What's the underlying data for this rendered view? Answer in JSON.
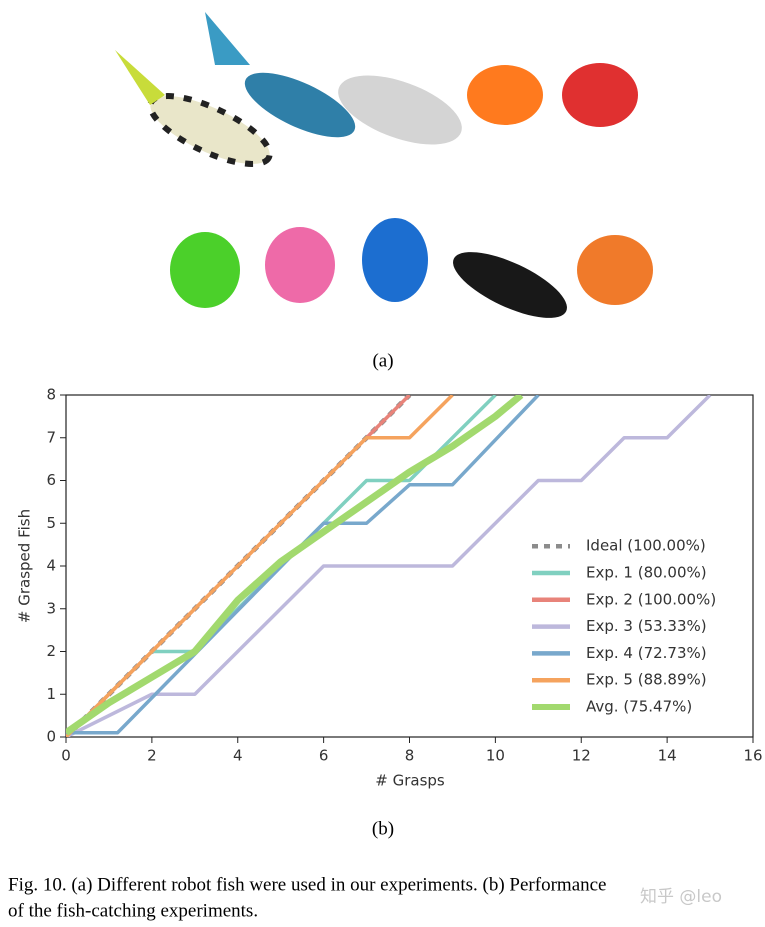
{
  "figure": {
    "panel_a_label": "(a)",
    "panel_b_label": "(b)",
    "caption_line_1": "Fig. 10.  (a) Different robot fish were used in our experiments. (b) Performance",
    "caption_line_2": "of the fish-catching experiments.",
    "watermark": "知乎 @leo"
  },
  "chart_data": {
    "type": "line",
    "xlabel": "# Grasps",
    "ylabel": "# Grasped Fish",
    "xlim": [
      0,
      16
    ],
    "xticks": [
      0,
      2,
      4,
      6,
      8,
      10,
      12,
      14,
      16
    ],
    "ylim": [
      0,
      8
    ],
    "yticks": [
      0,
      1,
      2,
      3,
      4,
      5,
      6,
      7,
      8
    ],
    "legend": "lower right",
    "grid": false,
    "series": [
      {
        "name": "Ideal (100.00%)",
        "color": "#8c8c8c",
        "dashed": true,
        "x": [
          0,
          8
        ],
        "values": [
          0,
          8
        ]
      },
      {
        "name": "Exp. 1 (80.00%)",
        "color": "#80d0c0",
        "x": [
          0,
          2,
          3,
          7,
          8,
          10
        ],
        "values": [
          0,
          2,
          2,
          6,
          6,
          8
        ]
      },
      {
        "name": "Exp. 2 (100.00%)",
        "color": "#e8837a",
        "x": [
          0,
          8
        ],
        "values": [
          0,
          8
        ]
      },
      {
        "name": "Exp. 3 (53.33%)",
        "color": "#bdb8dc",
        "x": [
          0,
          2,
          3,
          6,
          9,
          11,
          12,
          13,
          14,
          15
        ],
        "values": [
          0,
          1,
          1,
          4,
          4,
          6,
          6,
          7,
          7,
          8
        ]
      },
      {
        "name": "Exp. 4 (72.73%)",
        "color": "#78a8cc",
        "x": [
          0,
          1.2,
          6,
          7,
          8,
          9,
          11
        ],
        "values": [
          0.1,
          0.1,
          5,
          5,
          5.9,
          5.9,
          8
        ]
      },
      {
        "name": "Exp. 5 (88.89%)",
        "color": "#f5a35e",
        "x": [
          0,
          7,
          8,
          9
        ],
        "values": [
          0,
          7,
          7,
          8
        ]
      },
      {
        "name": "Avg. (75.47%)",
        "color": "#a2d96e",
        "thick": true,
        "x": [
          0,
          1,
          2,
          3,
          4,
          5,
          6,
          7,
          8,
          9,
          10,
          10.6
        ],
        "values": [
          0.1,
          0.8,
          1.4,
          2,
          3.2,
          4.1,
          4.8,
          5.5,
          6.2,
          6.8,
          7.5,
          8
        ]
      }
    ]
  }
}
